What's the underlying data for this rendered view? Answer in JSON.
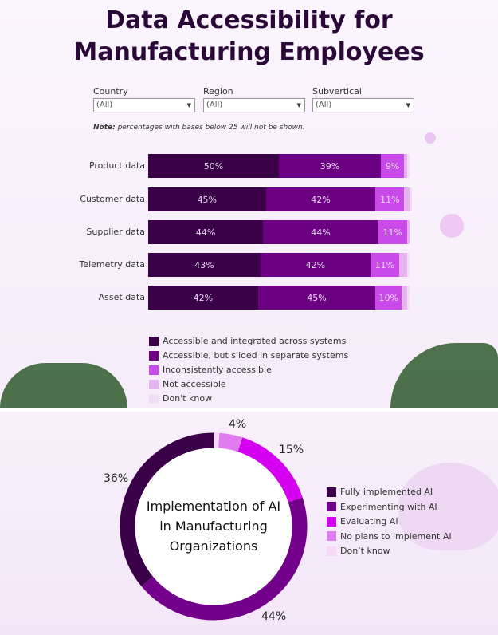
{
  "title_line1": "Data Accessibility for",
  "title_line2": "Manufacturing Employees",
  "filters": [
    {
      "label": "Country",
      "value": "(All)"
    },
    {
      "label": "Region",
      "value": "(All)"
    },
    {
      "label": "Subvertical",
      "value": "(All)"
    }
  ],
  "note_bold": "Note:",
  "note_text": " percentages with bases below 25 will not be shown.",
  "chart_data": [
    {
      "type": "bar",
      "orientation": "horizontal",
      "stacked": true,
      "categories": [
        "Product data",
        "Customer data",
        "Supplier data",
        "Telemetry data",
        "Asset data"
      ],
      "series": [
        {
          "name": "Accessible and integrated across systems",
          "color": "#3a0048",
          "values": [
            50,
            45,
            44,
            43,
            42
          ]
        },
        {
          "name": "Accessible, but siloed in separate systems",
          "color": "#6c0082",
          "values": [
            39,
            42,
            44,
            42,
            45
          ]
        },
        {
          "name": "Inconsistently accessible",
          "color": "#c94ae8",
          "values": [
            9,
            11,
            11,
            11,
            10
          ]
        },
        {
          "name": "Not accessible",
          "color": "#e5b3f0",
          "values": [
            1,
            2,
            1,
            3,
            2
          ]
        },
        {
          "name": "Don't know",
          "color": "#f3dcf7",
          "values": [
            1,
            1,
            0,
            1,
            1
          ]
        }
      ],
      "xlim": [
        0,
        100
      ]
    },
    {
      "type": "pie",
      "donut": true,
      "title": "Implementation of AI in Manufacturing Organizations",
      "slices": [
        {
          "name": "Fully implemented AI",
          "value": 36,
          "label": "36%",
          "color": "#3a0048"
        },
        {
          "name": "Experimenting with AI",
          "value": 44,
          "label": "44%",
          "color": "#72008a"
        },
        {
          "name": "Evaluating AI",
          "value": 15,
          "label": "15%",
          "color": "#d400f0"
        },
        {
          "name": "No plans to implement AI",
          "value": 4,
          "label": "4%",
          "color": "#e17cf0"
        },
        {
          "name": "Don’t know",
          "value": 1,
          "label": "",
          "color": "#f6d9f9"
        }
      ]
    }
  ],
  "donut_title": [
    "Implementation of AI",
    "in Manufacturing",
    "Organizations"
  ]
}
